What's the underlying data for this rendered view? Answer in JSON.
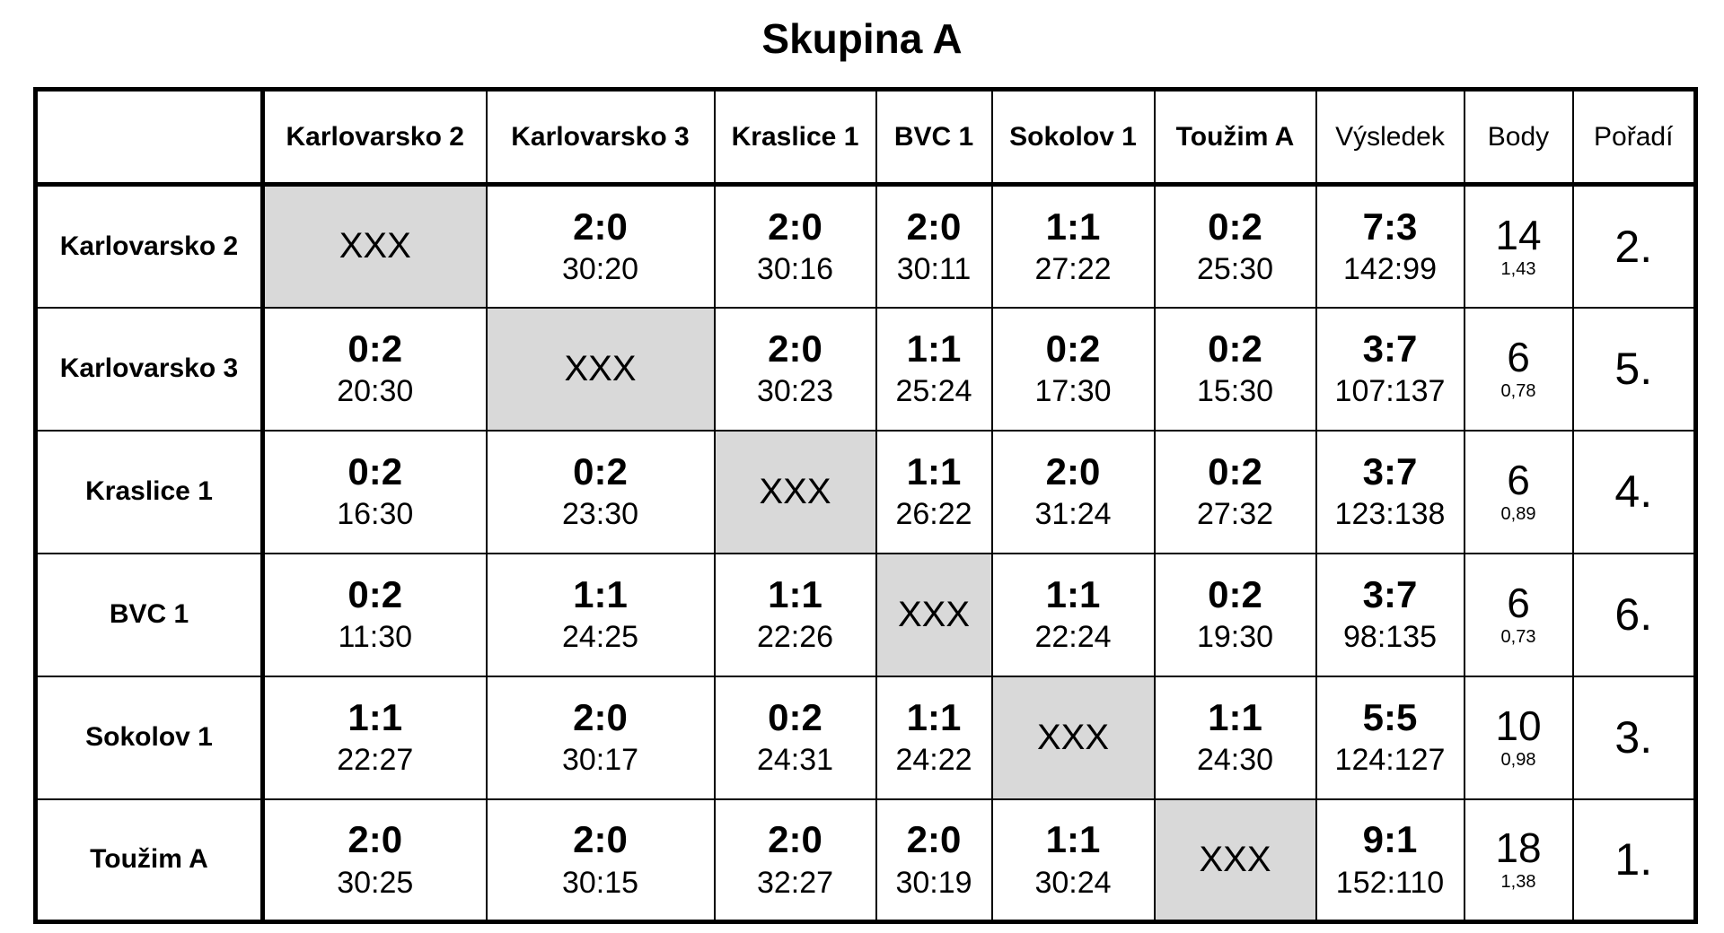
{
  "title": "Skupina A",
  "colors": {
    "background": "#ffffff",
    "border": "#000000",
    "diagonal_bg": "#d9d9d9"
  },
  "table": {
    "diagonal_text": "XXX",
    "column_headers": [
      {
        "label": "",
        "kind": "corner"
      },
      {
        "label": "Karlovarsko 2",
        "kind": "team"
      },
      {
        "label": "Karlovarsko 3",
        "kind": "team"
      },
      {
        "label": "Kraslice 1",
        "kind": "team"
      },
      {
        "label": "BVC 1",
        "kind": "team"
      },
      {
        "label": "Sokolov 1",
        "kind": "team"
      },
      {
        "label": "Toužim A",
        "kind": "team"
      },
      {
        "label": "Výsledek",
        "kind": "stat"
      },
      {
        "label": "Body",
        "kind": "stat"
      },
      {
        "label": "Pořadí",
        "kind": "stat"
      }
    ],
    "rows": [
      {
        "team": "Karlovarsko 2",
        "matches": [
          null,
          {
            "score": "2:0",
            "sets": "30:20"
          },
          {
            "score": "2:0",
            "sets": "30:16"
          },
          {
            "score": "2:0",
            "sets": "30:11"
          },
          {
            "score": "1:1",
            "sets": "27:22"
          },
          {
            "score": "0:2",
            "sets": "25:30"
          }
        ],
        "result": {
          "score": "7:3",
          "sets": "142:99"
        },
        "points": "14",
        "ratio": "1,43",
        "rank": "2."
      },
      {
        "team": "Karlovarsko 3",
        "matches": [
          {
            "score": "0:2",
            "sets": "20:30"
          },
          null,
          {
            "score": "2:0",
            "sets": "30:23"
          },
          {
            "score": "1:1",
            "sets": "25:24"
          },
          {
            "score": "0:2",
            "sets": "17:30"
          },
          {
            "score": "0:2",
            "sets": "15:30"
          }
        ],
        "result": {
          "score": "3:7",
          "sets": "107:137"
        },
        "points": "6",
        "ratio": "0,78",
        "rank": "5."
      },
      {
        "team": "Kraslice 1",
        "matches": [
          {
            "score": "0:2",
            "sets": "16:30"
          },
          {
            "score": "0:2",
            "sets": "23:30"
          },
          null,
          {
            "score": "1:1",
            "sets": "26:22"
          },
          {
            "score": "2:0",
            "sets": "31:24"
          },
          {
            "score": "0:2",
            "sets": "27:32"
          }
        ],
        "result": {
          "score": "3:7",
          "sets": "123:138"
        },
        "points": "6",
        "ratio": "0,89",
        "rank": "4."
      },
      {
        "team": "BVC 1",
        "matches": [
          {
            "score": "0:2",
            "sets": "11:30"
          },
          {
            "score": "1:1",
            "sets": "24:25"
          },
          {
            "score": "1:1",
            "sets": "22:26"
          },
          null,
          {
            "score": "1:1",
            "sets": "22:24"
          },
          {
            "score": "0:2",
            "sets": "19:30"
          }
        ],
        "result": {
          "score": "3:7",
          "sets": "98:135"
        },
        "points": "6",
        "ratio": "0,73",
        "rank": "6."
      },
      {
        "team": "Sokolov 1",
        "matches": [
          {
            "score": "1:1",
            "sets": "22:27"
          },
          {
            "score": "2:0",
            "sets": "30:17"
          },
          {
            "score": "0:2",
            "sets": "24:31"
          },
          {
            "score": "1:1",
            "sets": "24:22"
          },
          null,
          {
            "score": "1:1",
            "sets": "24:30"
          }
        ],
        "result": {
          "score": "5:5",
          "sets": "124:127"
        },
        "points": "10",
        "ratio": "0,98",
        "rank": "3."
      },
      {
        "team": "Toužim A",
        "matches": [
          {
            "score": "2:0",
            "sets": "30:25"
          },
          {
            "score": "2:0",
            "sets": "30:15"
          },
          {
            "score": "2:0",
            "sets": "32:27"
          },
          {
            "score": "2:0",
            "sets": "30:19"
          },
          {
            "score": "1:1",
            "sets": "30:24"
          },
          null
        ],
        "result": {
          "score": "9:1",
          "sets": "152:110"
        },
        "points": "18",
        "ratio": "1,38",
        "rank": "1."
      }
    ]
  }
}
